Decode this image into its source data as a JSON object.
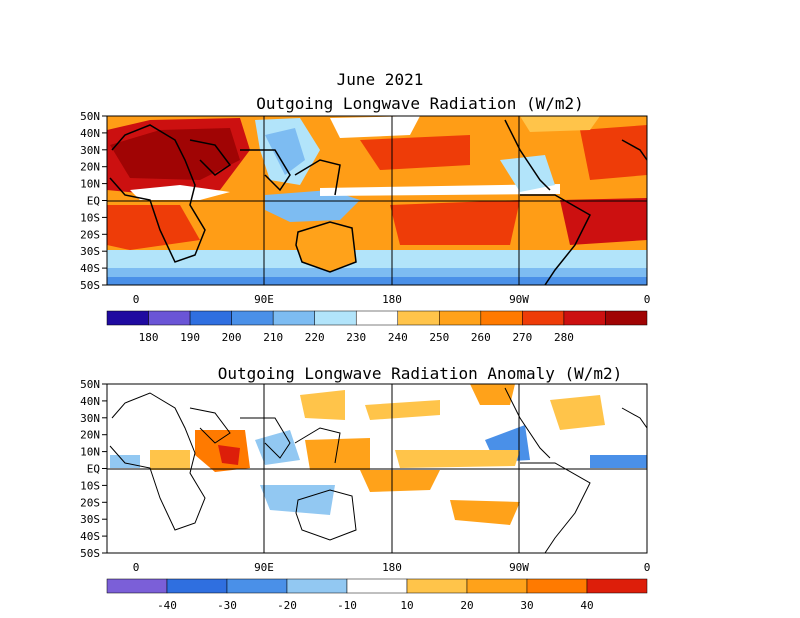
{
  "header": {
    "date": "June 2021",
    "top_title": "Outgoing Longwave Radiation (W/m2)",
    "bottom_title": "Outgoing Longwave Radiation Anomaly (W/m2)"
  },
  "map_axes": {
    "lat_labels": [
      "50N",
      "40N",
      "30N",
      "20N",
      "10N",
      "EQ",
      "10S",
      "20S",
      "30S",
      "40S",
      "50S"
    ],
    "lon_labels": [
      "0",
      "90E",
      "180",
      "90W",
      "0"
    ]
  },
  "top_colorbar": {
    "colors": [
      "#1f0aa0",
      "#6a55d6",
      "#2f6fe0",
      "#4a90e8",
      "#7dbcf2",
      "#b2e4fa",
      "#ffffff",
      "#ffc44a",
      "#ffa21a",
      "#ff7a00",
      "#ee3c08",
      "#cc1010",
      "#a00404"
    ],
    "labels": [
      "180",
      "190",
      "200",
      "210",
      "220",
      "230",
      "240",
      "250",
      "260",
      "270",
      "280"
    ]
  },
  "bottom_colorbar": {
    "colors": [
      "#7b5fd8",
      "#2f6fe0",
      "#4a90e8",
      "#92c8f2",
      "#ffffff",
      "#ffc44a",
      "#ffa21a",
      "#ff7a00",
      "#dd1e0a"
    ],
    "labels": [
      "-40",
      "-30",
      "-20",
      "-10",
      "10",
      "20",
      "30",
      "40"
    ]
  },
  "icons": {
    "map_top": "olr-map-icon",
    "map_bottom": "olr-anomaly-map-icon"
  }
}
